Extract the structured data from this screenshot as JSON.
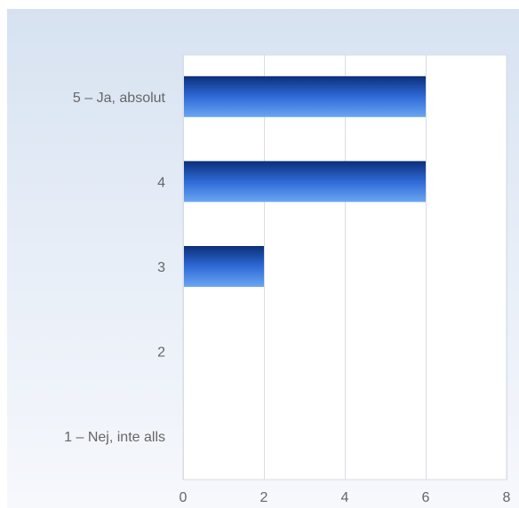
{
  "chart_data": {
    "type": "bar",
    "orientation": "horizontal",
    "categories": [
      "5 – Ja, absolut",
      "4",
      "3",
      "2",
      "1 – Nej, inte alls"
    ],
    "values": [
      6,
      6,
      2,
      0,
      0
    ],
    "xlim": [
      0,
      8
    ],
    "xticks": [
      0,
      2,
      4,
      6,
      8
    ],
    "grid": true,
    "title": "",
    "xlabel": "",
    "ylabel": "",
    "colors": {
      "bar_dark": "#0a2f7a",
      "bar_mid": "#2f6ad6",
      "bar_light": "#6aa6f2",
      "grid": "#d8dde6",
      "plot_bg": "#ffffff",
      "text": "#666666"
    }
  }
}
